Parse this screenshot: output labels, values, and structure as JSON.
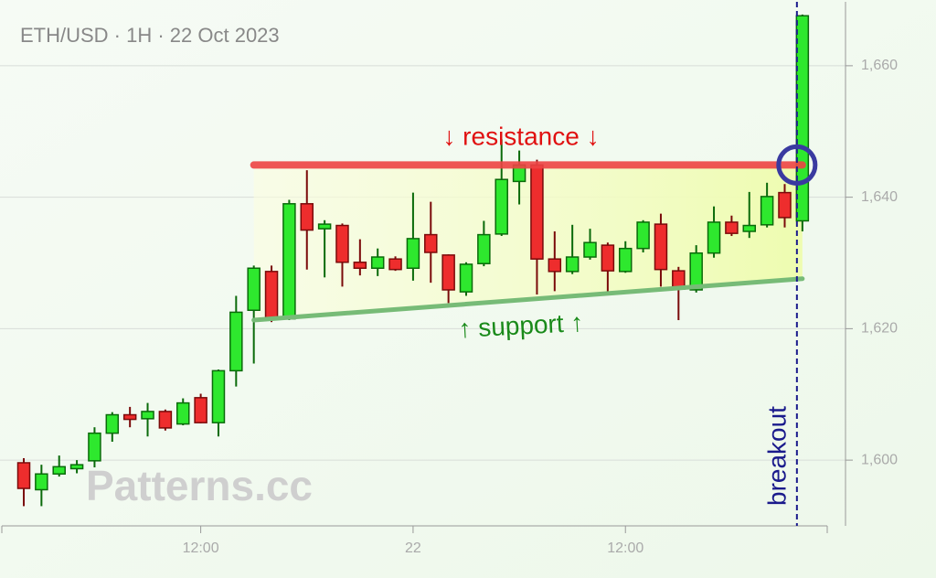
{
  "chart_data": {
    "type": "candlestick",
    "title": "ETH/USD · 1H · 22 Oct 2023",
    "watermark": "Patterns.cc",
    "x": [
      "2023-10-21T02:00",
      "2023-10-21T03:00",
      "2023-10-21T04:00",
      "2023-10-21T05:00",
      "2023-10-21T06:00",
      "2023-10-21T07:00",
      "2023-10-21T08:00",
      "2023-10-21T09:00",
      "2023-10-21T10:00",
      "2023-10-21T11:00",
      "2023-10-21T12:00",
      "2023-10-21T13:00",
      "2023-10-21T14:00",
      "2023-10-21T15:00",
      "2023-10-21T16:00",
      "2023-10-21T17:00",
      "2023-10-21T18:00",
      "2023-10-21T19:00",
      "2023-10-21T20:00",
      "2023-10-21T21:00",
      "2023-10-21T22:00",
      "2023-10-21T23:00",
      "2023-10-22T00:00",
      "2023-10-22T01:00",
      "2023-10-22T02:00",
      "2023-10-22T03:00",
      "2023-10-22T04:00",
      "2023-10-22T05:00",
      "2023-10-22T06:00",
      "2023-10-22T07:00",
      "2023-10-22T08:00",
      "2023-10-22T09:00",
      "2023-10-22T10:00",
      "2023-10-22T11:00",
      "2023-10-22T12:00",
      "2023-10-22T13:00",
      "2023-10-22T14:00",
      "2023-10-22T15:00",
      "2023-10-22T16:00",
      "2023-10-22T17:00",
      "2023-10-22T18:00",
      "2023-10-22T19:00",
      "2023-10-22T20:00",
      "2023-10-22T21:00",
      "2023-10-22T22:00"
    ],
    "open": [
      1599.6,
      1595.5,
      1597.9,
      1598.7,
      1599.9,
      1604.1,
      1606.9,
      1606.3,
      1607.4,
      1605.5,
      1609.5,
      1605.7,
      1613.6,
      1622.8,
      1628.7,
      1621.5,
      1639.0,
      1635.2,
      1635.7,
      1630.1,
      1629.2,
      1630.6,
      1629.2,
      1634.3,
      1631.2,
      1625.6,
      1629.9,
      1634.4,
      1642.4,
      1644.9,
      1630.6,
      1628.7,
      1630.9,
      1632.7,
      1628.7,
      1632.2,
      1635.9,
      1628.8,
      1625.9,
      1631.5,
      1636.2,
      1634.8,
      1635.8,
      1640.7,
      1636.4
    ],
    "high": [
      1600.3,
      1599.3,
      1600.7,
      1600.0,
      1605.0,
      1607.3,
      1608.1,
      1608.7,
      1607.7,
      1609.4,
      1610.1,
      1613.8,
      1625.0,
      1629.6,
      1629.6,
      1639.6,
      1644.1,
      1636.5,
      1636.0,
      1633.6,
      1632.2,
      1631.0,
      1640.7,
      1639.3,
      1631.3,
      1630.1,
      1636.4,
      1648.8,
      1647.1,
      1645.7,
      1634.8,
      1635.8,
      1635.2,
      1633.1,
      1633.3,
      1636.5,
      1637.5,
      1629.4,
      1632.7,
      1638.6,
      1637.2,
      1640.8,
      1642.2,
      1642.0,
      1667.8
    ],
    "low": [
      1593.0,
      1593.0,
      1597.5,
      1598.0,
      1598.9,
      1602.8,
      1605.0,
      1603.6,
      1604.5,
      1605.3,
      1605.6,
      1603.6,
      1611.2,
      1614.7,
      1621.0,
      1621.3,
      1629.0,
      1627.8,
      1626.4,
      1628.1,
      1628.0,
      1628.8,
      1627.3,
      1627.0,
      1623.9,
      1625.0,
      1629.5,
      1634.1,
      1638.9,
      1625.2,
      1625.7,
      1628.3,
      1630.5,
      1625.2,
      1628.5,
      1631.6,
      1626.4,
      1621.3,
      1625.5,
      1630.8,
      1634.1,
      1633.8,
      1635.4,
      1635.4,
      1634.8
    ],
    "close": [
      1595.7,
      1597.9,
      1599.0,
      1599.3,
      1604.1,
      1606.9,
      1606.2,
      1607.4,
      1604.9,
      1608.7,
      1605.7,
      1613.6,
      1622.5,
      1629.2,
      1621.5,
      1639.0,
      1635.0,
      1635.9,
      1630.1,
      1629.2,
      1630.9,
      1629.0,
      1633.7,
      1631.6,
      1625.9,
      1629.8,
      1634.3,
      1642.7,
      1644.9,
      1630.6,
      1628.7,
      1630.9,
      1633.1,
      1628.8,
      1632.2,
      1636.2,
      1629.0,
      1626.0,
      1631.5,
      1636.2,
      1634.5,
      1635.7,
      1640.1,
      1636.9,
      1667.6
    ],
    "up_color": "#2ee82e",
    "down_color": "#ee2d2d",
    "ylim": [
      1590,
      1670
    ],
    "yticks": [
      {
        "value": 1600,
        "label": "1,600"
      },
      {
        "value": 1620,
        "label": "1,620"
      },
      {
        "value": 1640,
        "label": "1,640"
      },
      {
        "value": 1660,
        "label": "1,660"
      }
    ],
    "xticks": [
      {
        "value": "2023-10-21T12:00",
        "label": "12:00"
      },
      {
        "value": "2023-10-22T00:00",
        "label": "22"
      },
      {
        "value": "2023-10-22T12:00",
        "label": "12:00"
      }
    ],
    "grid": true,
    "resistance": {
      "label": "↓ resistance ↓",
      "x": [
        "2023-10-21T15:00",
        "2023-10-22T22:00"
      ],
      "values": [
        1644.9,
        1644.9
      ],
      "color": "#ee4444"
    },
    "support": {
      "label": "↑ support ↑",
      "x": [
        "2023-10-21T15:00",
        "2023-10-22T22:00"
      ],
      "values": [
        1621.3,
        1627.6
      ],
      "color": "#77bb77"
    },
    "breakout": {
      "label": "breakout",
      "x": "2023-10-22T22:00",
      "color": "#1a1a8c"
    }
  }
}
